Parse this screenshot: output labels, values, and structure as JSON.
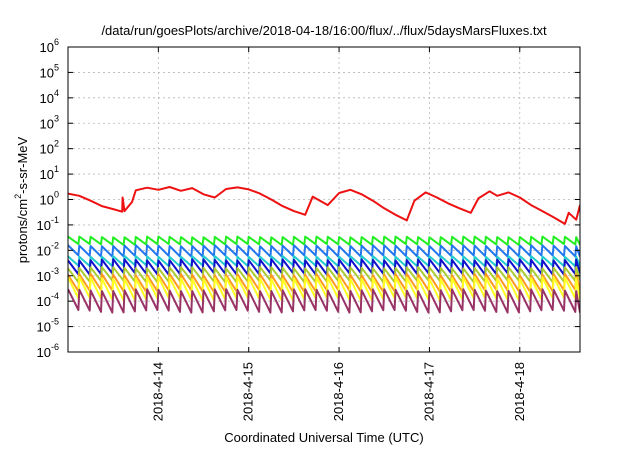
{
  "chart_data": {
    "type": "line",
    "title": "/data/run/goesPlots/archive/2018-04-18/16:00/flux/../flux/5daysMarsFluxes.txt",
    "xlabel": "Coordinated Universal Time (UTC)",
    "ylabel": {
      "base": "protons/cm",
      "sup": "2",
      "rest": "-s-sr-MeV"
    },
    "x_is_date": true,
    "xlim": [
      "2018-04-13 00:00",
      "2018-04-18 16:00"
    ],
    "x_ticks": [
      "2018-4-14",
      "2018-4-15",
      "2018-4-16",
      "2018-4-17",
      "2018-4-18"
    ],
    "y_scale": "log",
    "ylim": [
      1e-06,
      1000000.0
    ],
    "y_ticks": [
      {
        "base": "10",
        "exp": "-6"
      },
      {
        "base": "10",
        "exp": "-5"
      },
      {
        "base": "10",
        "exp": "-4"
      },
      {
        "base": "10",
        "exp": "-3"
      },
      {
        "base": "10",
        "exp": "-2"
      },
      {
        "base": "10",
        "exp": "-1"
      },
      {
        "base": "10",
        "exp": "0"
      },
      {
        "base": "10",
        "exp": "1"
      },
      {
        "base": "10",
        "exp": "2"
      },
      {
        "base": "10",
        "exp": "3"
      },
      {
        "base": "10",
        "exp": "4"
      },
      {
        "base": "10",
        "exp": "5"
      },
      {
        "base": "10",
        "exp": "6"
      }
    ],
    "grid": true,
    "legend": "none",
    "series": [
      {
        "color": "#ee1111",
        "pattern": "smooth",
        "points": [
          [
            "2018-04-13 00:00",
            1.7
          ],
          [
            "2018-04-13 03:00",
            1.4
          ],
          [
            "2018-04-13 06:00",
            0.9
          ],
          [
            "2018-04-13 09:00",
            0.55
          ],
          [
            "2018-04-13 12:00",
            0.42
          ],
          [
            "2018-04-13 15:00",
            0.35
          ],
          [
            "2018-04-13 14:24",
            0.33
          ],
          [
            "2018-04-13 14:30",
            1.2
          ],
          [
            "2018-04-13 17:00",
            0.8
          ],
          [
            "2018-04-13 18:00",
            2.3
          ],
          [
            "2018-04-13 21:00",
            2.9
          ],
          [
            "2018-04-14 00:00",
            2.4
          ],
          [
            "2018-04-14 03:00",
            3.1
          ],
          [
            "2018-04-14 06:00",
            2.2
          ],
          [
            "2018-04-14 09:00",
            2.8
          ],
          [
            "2018-04-14 12:00",
            1.6
          ],
          [
            "2018-04-14 15:00",
            1.2
          ],
          [
            "2018-04-14 18:00",
            2.6
          ],
          [
            "2018-04-14 21:00",
            3.0
          ],
          [
            "2018-04-15 00:00",
            2.5
          ],
          [
            "2018-04-15 03:00",
            1.7
          ],
          [
            "2018-04-15 06:00",
            1.0
          ],
          [
            "2018-04-15 09:00",
            0.55
          ],
          [
            "2018-04-15 12:00",
            0.35
          ],
          [
            "2018-04-15 15:00",
            0.25
          ],
          [
            "2018-04-15 17:00",
            1.3
          ],
          [
            "2018-04-15 21:00",
            0.6
          ],
          [
            "2018-04-16 00:00",
            1.8
          ],
          [
            "2018-04-16 03:00",
            2.4
          ],
          [
            "2018-04-16 06:00",
            1.6
          ],
          [
            "2018-04-16 09:00",
            0.9
          ],
          [
            "2018-04-16 12:00",
            0.45
          ],
          [
            "2018-04-16 15:00",
            0.25
          ],
          [
            "2018-04-16 18:00",
            0.15
          ],
          [
            "2018-04-16 20:00",
            0.9
          ],
          [
            "2018-04-16 23:00",
            1.9
          ],
          [
            "2018-04-17 02:00",
            1.2
          ],
          [
            "2018-04-17 05:00",
            0.7
          ],
          [
            "2018-04-17 08:00",
            0.45
          ],
          [
            "2018-04-17 11:00",
            0.3
          ],
          [
            "2018-04-17 13:00",
            1.1
          ],
          [
            "2018-04-17 16:00",
            2.1
          ],
          [
            "2018-04-17 18:00",
            1.4
          ],
          [
            "2018-04-17 21:00",
            1.9
          ],
          [
            "2018-04-18 00:00",
            1.2
          ],
          [
            "2018-04-18 03:00",
            0.6
          ],
          [
            "2018-04-18 06:00",
            0.35
          ],
          [
            "2018-04-18 09:00",
            0.2
          ],
          [
            "2018-04-18 12:00",
            0.11
          ],
          [
            "2018-04-18 13:00",
            0.3
          ],
          [
            "2018-04-18 15:00",
            0.16
          ],
          [
            "2018-04-18 16:00",
            0.6
          ]
        ]
      },
      {
        "color": "#22ee22",
        "pattern": "sawtooth",
        "low": 0.017,
        "high": 0.035
      },
      {
        "color": "#2277ee",
        "pattern": "sawtooth",
        "low": 0.006,
        "high": 0.016
      },
      {
        "color": "#22cccc",
        "pattern": "sawtooth",
        "low": 0.0025,
        "high": 0.006
      },
      {
        "color": "#1111cc",
        "pattern": "sawtooth",
        "low": 0.0012,
        "high": 0.0045
      },
      {
        "color": "#aacc33",
        "pattern": "sawtooth",
        "low": 0.0006,
        "high": 0.0022
      },
      {
        "color": "#ff9922",
        "pattern": "sawtooth",
        "low": 0.00025,
        "high": 0.0012
      },
      {
        "color": "#ffff22",
        "pattern": "sawtooth",
        "low": 0.00012,
        "high": 0.0009
      },
      {
        "color": "#993366",
        "pattern": "sawtooth",
        "low": 4e-05,
        "high": 0.0003
      }
    ]
  }
}
